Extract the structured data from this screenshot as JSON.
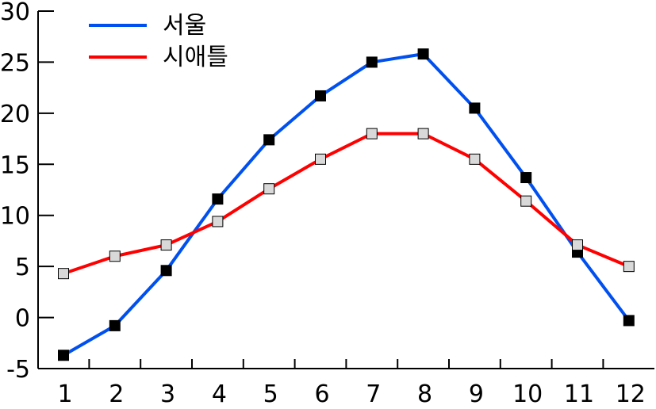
{
  "chart_data": {
    "type": "line",
    "title": "",
    "xlabel": "",
    "ylabel": "",
    "categories": [
      1,
      2,
      3,
      4,
      5,
      6,
      7,
      8,
      9,
      10,
      11,
      12
    ],
    "x_tick_labels": [
      "1",
      "2",
      "3",
      "4",
      "5",
      "6",
      "7",
      "8",
      "9",
      "10",
      "11",
      "12"
    ],
    "ylim": [
      -5,
      30
    ],
    "y_ticks": [
      -5,
      0,
      5,
      10,
      15,
      20,
      25,
      30
    ],
    "y_tick_labels": [
      "-5",
      "0",
      "5",
      "10",
      "15",
      "20",
      "25",
      "30"
    ],
    "grid": false,
    "legend_position": "top-left",
    "series": [
      {
        "name": "서울",
        "color": "#0050f0",
        "marker_fill": "#000000",
        "values": [
          -3.7,
          -0.8,
          4.6,
          11.6,
          17.4,
          21.7,
          25.0,
          25.8,
          20.5,
          13.7,
          6.4,
          -0.3
        ]
      },
      {
        "name": "시애틀",
        "color": "#ff0000",
        "marker_fill": "#d9d9d9",
        "values": [
          4.3,
          6.0,
          7.1,
          9.4,
          12.6,
          15.5,
          18.0,
          18.0,
          15.5,
          11.4,
          7.1,
          5.0
        ]
      }
    ]
  }
}
